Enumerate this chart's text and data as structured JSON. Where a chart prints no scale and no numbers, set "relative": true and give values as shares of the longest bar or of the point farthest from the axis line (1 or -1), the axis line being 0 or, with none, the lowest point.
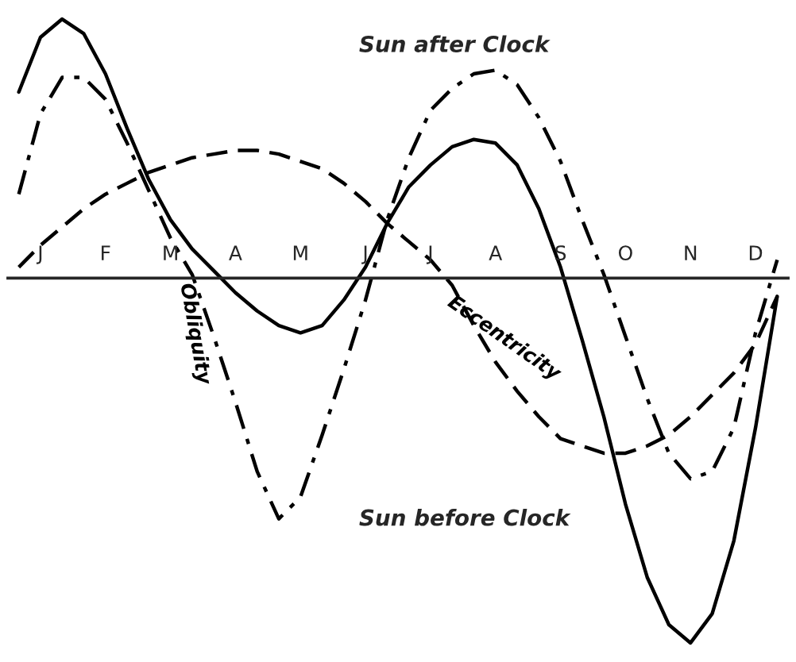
{
  "chart_data": {
    "type": "line",
    "relative": true,
    "annotations": [
      "Sun after Clock",
      "Sun before Clock"
    ],
    "categories": [
      null,
      "J",
      null,
      null,
      "F",
      null,
      null,
      "M",
      null,
      null,
      "A",
      null,
      null,
      "M",
      null,
      null,
      "J",
      null,
      null,
      "J",
      null,
      null,
      "A",
      null,
      null,
      "S",
      null,
      null,
      "O",
      null,
      null,
      "N",
      null,
      null,
      "D",
      null
    ],
    "grid": false,
    "legend": false,
    "marker": "none",
    "series": [
      {
        "color": "#000000",
        "line_style": "solid",
        "values": [
          0.51,
          0.66,
          0.71,
          0.67,
          0.56,
          0.41,
          0.27,
          0.16,
          0.08,
          0.02,
          -0.04,
          -0.09,
          -0.13,
          -0.15,
          -0.13,
          -0.06,
          0.03,
          0.15,
          0.25,
          0.31,
          0.36,
          0.38,
          0.37,
          0.31,
          0.19,
          0.03,
          -0.17,
          -0.38,
          -0.62,
          -0.82,
          -0.95,
          -1,
          -0.92,
          -0.72,
          -0.41,
          -0.05
        ]
      },
      {
        "name": "Obliquity",
        "color": "#000000",
        "line_style": "dashdot",
        "values": [
          0.23,
          0.45,
          0.55,
          0.55,
          0.49,
          0.37,
          0.24,
          0.11,
          0.01,
          -0.16,
          -0.34,
          -0.53,
          -0.66,
          -0.6,
          -0.43,
          -0.25,
          -0.06,
          0.16,
          0.33,
          0.46,
          0.52,
          0.56,
          0.57,
          0.53,
          0.44,
          0.32,
          0.16,
          0.01,
          -0.16,
          -0.33,
          -0.48,
          -0.55,
          -0.53,
          -0.41,
          -0.15,
          0.05
        ]
      },
      {
        "name": "Eccentricity",
        "color": "#000000",
        "line_style": "dashed",
        "values": [
          0.03,
          0.09,
          0.14,
          0.19,
          0.23,
          0.26,
          0.29,
          0.31,
          0.33,
          0.34,
          0.35,
          0.35,
          0.34,
          0.32,
          0.3,
          0.26,
          0.21,
          0.15,
          0.1,
          0.05,
          -0.02,
          -0.13,
          -0.23,
          -0.31,
          -0.38,
          -0.44,
          -0.46,
          -0.48,
          -0.48,
          -0.46,
          -0.43,
          -0.38,
          -0.32,
          -0.26,
          -0.18,
          -0.05
        ]
      }
    ]
  }
}
